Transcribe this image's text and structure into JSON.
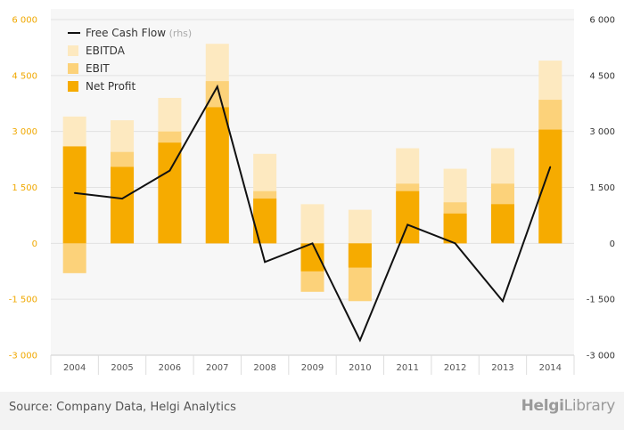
{
  "chart_data": {
    "type": "bar",
    "categories": [
      "2004",
      "2005",
      "2006",
      "2007",
      "2008",
      "2009",
      "2010",
      "2011",
      "2012",
      "2013",
      "2014"
    ],
    "series": [
      {
        "name": "EBITDA",
        "kind": "bar",
        "color": "#fde9c0",
        "values": [
          3400,
          3300,
          3900,
          5350,
          2400,
          1050,
          900,
          2550,
          2000,
          2550,
          4900
        ]
      },
      {
        "name": "EBIT",
        "kind": "bar",
        "color": "#fcd27a",
        "values": [
          -800,
          2450,
          3000,
          4350,
          1400,
          -1300,
          -1550,
          1600,
          1100,
          1600,
          3850
        ]
      },
      {
        "name": "Net Profit",
        "kind": "bar",
        "color": "#f6ab00",
        "values": [
          2600,
          2050,
          2700,
          3650,
          1200,
          -750,
          -650,
          1400,
          800,
          1050,
          3050
        ]
      },
      {
        "name": "Free Cash Flow",
        "legend_suffix": "(rhs)",
        "kind": "line",
        "color": "#111111",
        "values": [
          1350,
          1200,
          1950,
          4200,
          -500,
          0,
          -2600,
          500,
          0,
          -1550,
          2050
        ]
      }
    ],
    "yaxis_left": {
      "min": -3000,
      "max": 6000,
      "ticks": [
        "-3 000",
        "-1 500",
        "0",
        "1 500",
        "3 000",
        "4 500",
        "6 000"
      ],
      "color": "#f0a800"
    },
    "yaxis_right": {
      "min": -3000,
      "max": 6000,
      "ticks": [
        "-3 000",
        "-1 500",
        "0",
        "1 500",
        "3 000",
        "4 500",
        "6 000"
      ],
      "color": "#333333"
    },
    "grid": true,
    "legend_position": "top-left"
  },
  "footer": {
    "source": "Source: Company Data, Helgi Analytics",
    "brand_prefix": "Helgi",
    "brand_suffix": "Library"
  }
}
